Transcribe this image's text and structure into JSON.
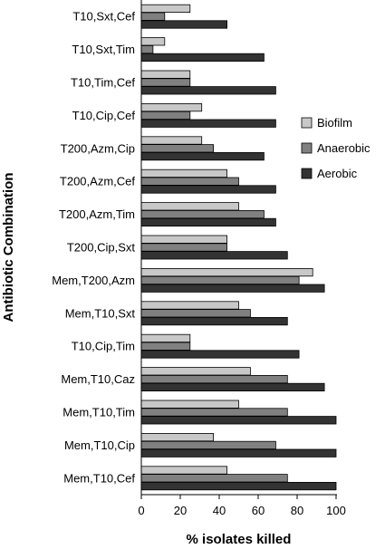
{
  "chart_data": {
    "type": "bar",
    "orientation": "horizontal",
    "xlabel": "% isolates killed",
    "ylabel": "Antibiotic Combination",
    "xlim": [
      0,
      100
    ],
    "xticks": [
      0,
      20,
      40,
      60,
      80,
      100
    ],
    "grid": false,
    "legend_position": "right",
    "categories": [
      "T10,Sxt,Cef",
      "T10,Sxt,Tim",
      "T10,Tim,Cef",
      "T10,Cip,Cef",
      "T200,Azm,Cip",
      "T200,Azm,Cef",
      "T200,Azm,Tim",
      "T200,Cip,Sxt",
      "Mem,T200,Azm",
      "Mem,T10,Sxt",
      "T10,Cip,Tim",
      "Mem,T10,Caz",
      "Mem,T10,Tim",
      "Mem,T10,Cip",
      "Mem,T10,Cef"
    ],
    "series": [
      {
        "name": "Biofilm",
        "color": "#c8c8c8",
        "values": [
          25,
          12,
          25,
          31,
          31,
          44,
          50,
          44,
          88,
          50,
          25,
          56,
          50,
          37,
          44
        ]
      },
      {
        "name": "Anaerobic",
        "color": "#808080",
        "values": [
          12,
          6,
          25,
          25,
          37,
          50,
          63,
          44,
          81,
          56,
          25,
          75,
          75,
          69,
          75
        ]
      },
      {
        "name": "Aerobic",
        "color": "#333333",
        "values": [
          44,
          63,
          69,
          69,
          63,
          69,
          69,
          75,
          94,
          75,
          81,
          94,
          100,
          100,
          100
        ]
      }
    ]
  }
}
